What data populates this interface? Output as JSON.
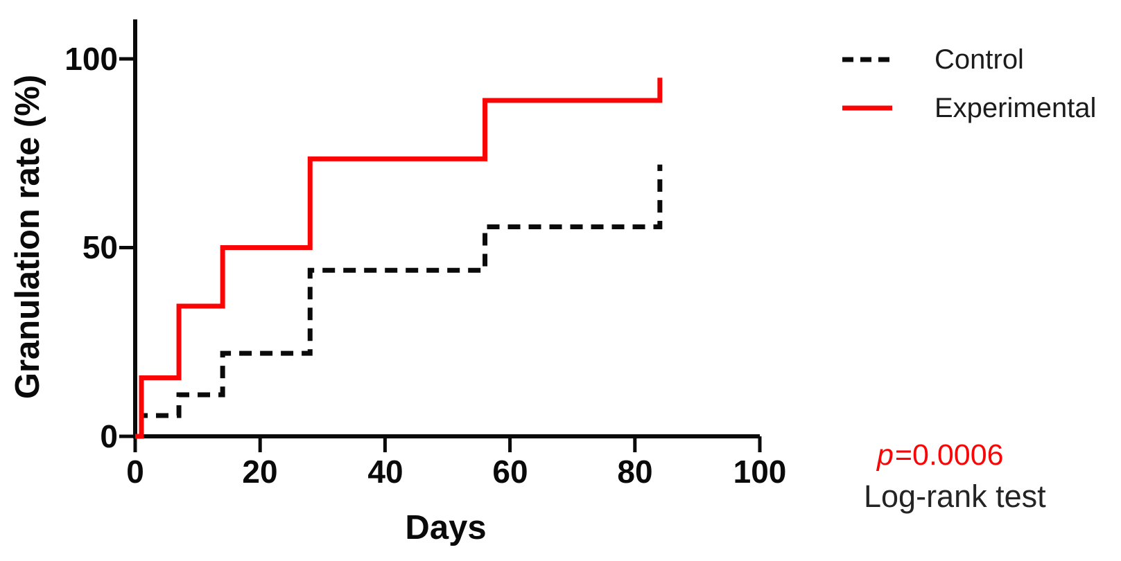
{
  "figure": {
    "background_color": "#ffffff"
  },
  "chart_data": {
    "type": "line",
    "subtype": "kaplan-meier-step",
    "title": "",
    "xlabel": "Days",
    "ylabel": "Granulation rate (%)",
    "xlim": [
      0,
      100
    ],
    "ylim": [
      0,
      110
    ],
    "x_ticks": [
      0,
      20,
      40,
      60,
      80,
      100
    ],
    "y_ticks": [
      0,
      50,
      100
    ],
    "grid": false,
    "legend_position": "top-right-outside",
    "axis_color": "#0a0a0a",
    "series": [
      {
        "name": "Control",
        "color": "#0a0a0a",
        "line_style": "dashed",
        "x": [
          0,
          1,
          7,
          14,
          28,
          56,
          84
        ],
        "y": [
          0,
          5.5,
          11,
          22,
          44,
          55.5,
          72
        ]
      },
      {
        "name": "Experimental",
        "color": "#fa0505",
        "line_style": "solid",
        "x": [
          0,
          1,
          7,
          14,
          28,
          56,
          84
        ],
        "y": [
          0,
          15.5,
          34.5,
          50,
          73.5,
          89,
          95
        ]
      }
    ],
    "annotations": {
      "p_prefix": "p",
      "p_text": "=0.0006",
      "p_color": "#fa0505",
      "test_name": "Log-rank test",
      "test_color": "#242424"
    }
  }
}
